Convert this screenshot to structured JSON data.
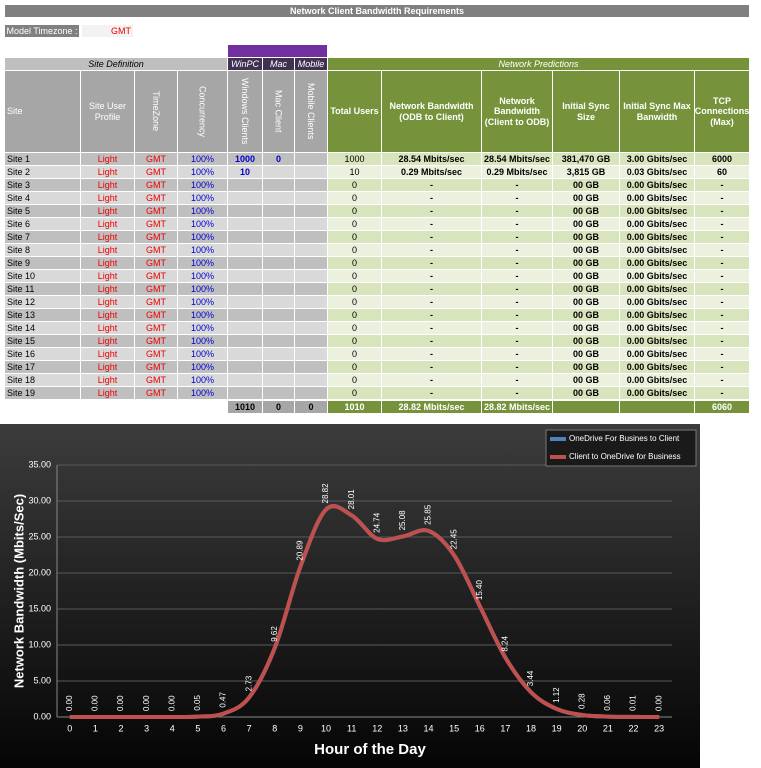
{
  "header": {
    "title": "Network Client Bandwidth Requirements",
    "timezone_label": "Model Timezone :",
    "timezone": "GMT"
  },
  "table": {
    "groups": [
      "Site Definition",
      "WinPC",
      "Mac",
      "Mobile",
      "Network Predictions"
    ],
    "columns": [
      "Site",
      "Site User Profile",
      "TimeZone",
      "Concurrency",
      "Windows Clients",
      "Mac Client",
      "Mobile Clients",
      "Total Users",
      "Network Bandwidth (ODB to Client)",
      "Network Bandwidth (Client to ODB)",
      "Initial Sync Size",
      "Initial Sync Max Banwidth",
      "TCP Connections (Max)"
    ],
    "rows": [
      [
        "Site 1",
        "Light",
        "GMT",
        "100%",
        "1000",
        "0",
        null,
        "1000",
        "28.54 Mbits/sec",
        "28.54 Mbits/sec",
        "381,470 GB",
        "3.00 Gbits/sec",
        "6000"
      ],
      [
        "Site 2",
        "Light",
        "GMT",
        "100%",
        "10",
        null,
        null,
        "10",
        "0.29 Mbits/sec",
        "0.29 Mbits/sec",
        "3,815 GB",
        "0.03 Gbits/sec",
        "60"
      ],
      [
        "Site 3",
        "Light",
        "GMT",
        "100%",
        null,
        null,
        null,
        "0",
        "-",
        "-",
        "00 GB",
        "0.00 Gbits/sec",
        "-"
      ],
      [
        "Site 4",
        "Light",
        "GMT",
        "100%",
        null,
        null,
        null,
        "0",
        "-",
        "-",
        "00 GB",
        "0.00 Gbits/sec",
        "-"
      ],
      [
        "Site 5",
        "Light",
        "GMT",
        "100%",
        null,
        null,
        null,
        "0",
        "-",
        "-",
        "00 GB",
        "0.00 Gbits/sec",
        "-"
      ],
      [
        "Site 6",
        "Light",
        "GMT",
        "100%",
        null,
        null,
        null,
        "0",
        "-",
        "-",
        "00 GB",
        "0.00 Gbits/sec",
        "-"
      ],
      [
        "Site 7",
        "Light",
        "GMT",
        "100%",
        null,
        null,
        null,
        "0",
        "-",
        "-",
        "00 GB",
        "0.00 Gbits/sec",
        "-"
      ],
      [
        "Site 8",
        "Light",
        "GMT",
        "100%",
        null,
        null,
        null,
        "0",
        "-",
        "-",
        "00 GB",
        "0.00 Gbits/sec",
        "-"
      ],
      [
        "Site 9",
        "Light",
        "GMT",
        "100%",
        null,
        null,
        null,
        "0",
        "-",
        "-",
        "00 GB",
        "0.00 Gbits/sec",
        "-"
      ],
      [
        "Site 10",
        "Light",
        "GMT",
        "100%",
        null,
        null,
        null,
        "0",
        "-",
        "-",
        "00 GB",
        "0.00 Gbits/sec",
        "-"
      ],
      [
        "Site 11",
        "Light",
        "GMT",
        "100%",
        null,
        null,
        null,
        "0",
        "-",
        "-",
        "00 GB",
        "0.00 Gbits/sec",
        "-"
      ],
      [
        "Site 12",
        "Light",
        "GMT",
        "100%",
        null,
        null,
        null,
        "0",
        "-",
        "-",
        "00 GB",
        "0.00 Gbits/sec",
        "-"
      ],
      [
        "Site 13",
        "Light",
        "GMT",
        "100%",
        null,
        null,
        null,
        "0",
        "-",
        "-",
        "00 GB",
        "0.00 Gbits/sec",
        "-"
      ],
      [
        "Site 14",
        "Light",
        "GMT",
        "100%",
        null,
        null,
        null,
        "0",
        "-",
        "-",
        "00 GB",
        "0.00 Gbits/sec",
        "-"
      ],
      [
        "Site 15",
        "Light",
        "GMT",
        "100%",
        null,
        null,
        null,
        "0",
        "-",
        "-",
        "00 GB",
        "0.00 Gbits/sec",
        "-"
      ],
      [
        "Site 16",
        "Light",
        "GMT",
        "100%",
        null,
        null,
        null,
        "0",
        "-",
        "-",
        "00 GB",
        "0.00 Gbits/sec",
        "-"
      ],
      [
        "Site 17",
        "Light",
        "GMT",
        "100%",
        null,
        null,
        null,
        "0",
        "-",
        "-",
        "00 GB",
        "0.00 Gbits/sec",
        "-"
      ],
      [
        "Site 18",
        "Light",
        "GMT",
        "100%",
        null,
        null,
        null,
        "0",
        "-",
        "-",
        "00 GB",
        "0.00 Gbits/sec",
        "-"
      ],
      [
        "Site 19",
        "Light",
        "GMT",
        "100%",
        null,
        null,
        null,
        "0",
        "-",
        "-",
        "00 GB",
        "0.00 Gbits/sec",
        "-"
      ]
    ],
    "totals": [
      null,
      null,
      null,
      null,
      "1010",
      "0",
      "0",
      "1010",
      "28.82 Mbits/sec",
      "28.82 Mbits/sec",
      null,
      null,
      "6060"
    ]
  },
  "chart_data": {
    "type": "line",
    "xlabel": "Hour of the Day",
    "ylabel": "Network Bandwidth (Mbits/Sec)",
    "categories": [
      "0",
      "1",
      "2",
      "3",
      "4",
      "5",
      "6",
      "7",
      "8",
      "9",
      "10",
      "11",
      "12",
      "13",
      "14",
      "15",
      "16",
      "17",
      "18",
      "19",
      "20",
      "21",
      "22",
      "23"
    ],
    "series": [
      {
        "name": "OneDrive For Busines to Client",
        "color": "#4f81bd",
        "values": [
          0,
          0,
          0,
          0,
          0,
          0.05,
          0.47,
          2.73,
          9.62,
          20.89,
          28.82,
          28.01,
          24.74,
          25.08,
          25.85,
          22.45,
          15.4,
          8.24,
          3.44,
          1.12,
          0.28,
          0.06,
          0.01,
          0.0
        ]
      },
      {
        "name": "Client to OneDrive for Business",
        "color": "#c0504d",
        "values": [
          0,
          0,
          0,
          0,
          0,
          0.05,
          0.47,
          2.73,
          9.62,
          20.89,
          28.82,
          28.01,
          24.74,
          25.08,
          25.85,
          22.45,
          15.4,
          8.24,
          3.44,
          1.12,
          0.28,
          0.06,
          0.01,
          0.0
        ],
        "value_labels": [
          "0.00",
          "0.00",
          "0.00",
          "0.00",
          "0.00",
          "0.05",
          "0.47",
          "2.73",
          "9.62",
          "20.89",
          "28.82",
          "28.01",
          "24.74",
          "25.08",
          "25.85",
          "22.45",
          "15.40",
          "8.24",
          "3.44",
          "1.12",
          "0.28",
          "0.06",
          "0.01",
          "0.00"
        ]
      }
    ],
    "ylim": [
      0,
      35
    ],
    "yticks": [
      {
        "value": 0,
        "label": "0.00"
      },
      {
        "value": 5,
        "label": "5.00"
      },
      {
        "value": 10,
        "label": "10.00"
      },
      {
        "value": 15,
        "label": "15.00"
      },
      {
        "value": 20,
        "label": "20.00"
      },
      {
        "value": 25,
        "label": "25.00"
      },
      {
        "value": 30,
        "label": "30.00"
      },
      {
        "value": 35,
        "label": "35.00"
      }
    ],
    "grid": true,
    "legend": "top-right"
  }
}
